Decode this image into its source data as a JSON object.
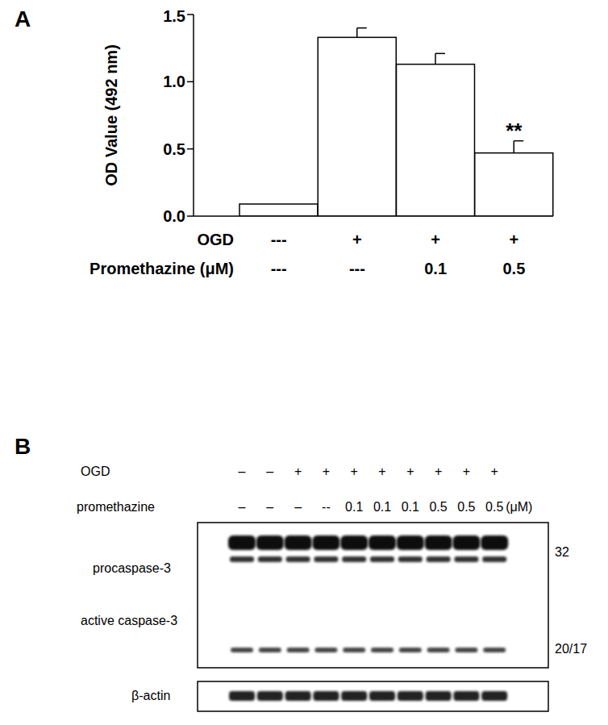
{
  "chart_data": [
    {
      "type": "bar",
      "panel": "A",
      "y_label": "OD Value (492 nm)",
      "categories": [
        null,
        null,
        null,
        null
      ],
      "x_rows": [
        {
          "name": "OGD",
          "labels": [
            "---",
            "+",
            "+",
            "+"
          ]
        },
        {
          "name": "Promethazine (μM)",
          "labels": [
            "---",
            "---",
            "0.1",
            "0.5"
          ]
        }
      ],
      "values": [
        0.09,
        1.33,
        1.13,
        0.47
      ],
      "errors": [
        0,
        0.07,
        0.08,
        0.09
      ],
      "annotations": [
        null,
        null,
        null,
        "**"
      ],
      "color": "#ffffff",
      "ylim": [
        0,
        1.5
      ],
      "yticks": [
        {
          "value": 0,
          "label": "0.0"
        },
        {
          "value": 0.5,
          "label": "0.5"
        },
        {
          "value": 1,
          "label": "1.0"
        },
        {
          "value": 1.5,
          "label": "1.5"
        }
      ],
      "grid": false
    },
    {
      "type": "blot",
      "panel": "B",
      "lane_rows": [
        {
          "name": "OGD",
          "labels": [
            "–",
            "–",
            "+",
            "+",
            "+",
            "+",
            "+",
            "+",
            "+",
            "+"
          ]
        },
        {
          "name": "promethazine",
          "labels": [
            "–",
            "–",
            "–",
            "--",
            "0.1",
            "0.1",
            "0.1",
            "0.5",
            "0.5",
            "0.5"
          ],
          "unit": "(μM)"
        }
      ],
      "bands": [
        {
          "name": "procaspase-3",
          "size_label": "32"
        },
        {
          "name": "active caspase-3",
          "size_label": "20/17"
        }
      ],
      "loading_control": "β-actin"
    }
  ]
}
